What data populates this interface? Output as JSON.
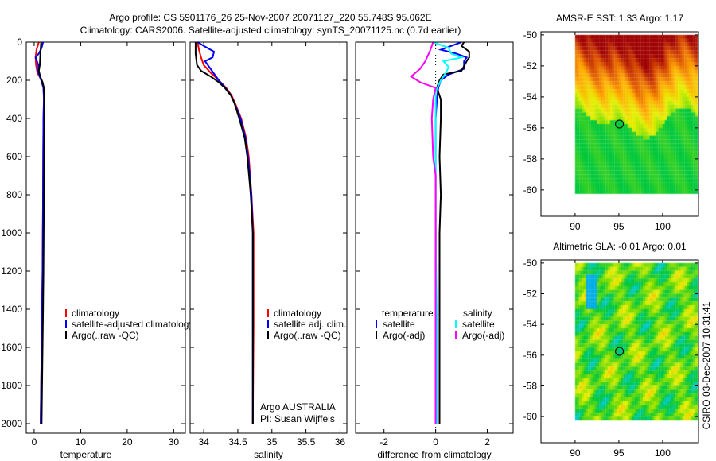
{
  "title": {
    "line1": "Argo profile: CS 5901176_26 25-Nov-2007 20071127_220 55.748S 95.062E",
    "line2": "Climatology: CARS2006. Satellite-adjusted climatology: synTS_20071125.nc (0.7d earlier)"
  },
  "side_stamp": "CSIRO 03-Dec-2007 10:31:41",
  "colors": {
    "climatology": "#ff0000",
    "satellite": "#0000ff",
    "argo": "#000000",
    "sal_satellite": "#00ffff",
    "sal_argo": "#ff00ff"
  },
  "chart_data": [
    {
      "type": "line",
      "name": "temperature",
      "xlabel": "temperature",
      "ylabel": "",
      "xlim": [
        -1.7,
        32.5
      ],
      "ylim": [
        2050,
        0
      ],
      "xticks": [
        0,
        10,
        20,
        30
      ],
      "yticks": [
        0,
        200,
        400,
        600,
        800,
        1000,
        1200,
        1400,
        1600,
        1800,
        2000
      ],
      "legend": [
        "climatology",
        "satellite-adjusted climatology",
        "Argo(..raw -QC)"
      ],
      "legend_position": "center-left",
      "series": [
        {
          "name": "climatology",
          "color": "#ff0000",
          "depth": [
            0,
            40,
            80,
            120,
            160,
            200,
            240,
            300,
            400,
            600,
            800,
            1000,
            1200,
            1400,
            1600,
            1800,
            2000
          ],
          "values": [
            1.0,
            0.5,
            0.3,
            0.4,
            0.7,
            1.6,
            2.0,
            2.1,
            2.0,
            1.95,
            1.9,
            1.85,
            1.8,
            1.7,
            1.6,
            1.5,
            1.4
          ]
        },
        {
          "name": "satellite-adjusted climatology",
          "color": "#0000ff",
          "depth": [
            0,
            30,
            60,
            80,
            120,
            160,
            200,
            240,
            300,
            400,
            600,
            800,
            1000,
            1200,
            1400,
            1600,
            1800,
            2000
          ],
          "values": [
            1.9,
            1.6,
            1.0,
            0.3,
            0.9,
            0.9,
            1.5,
            2.0,
            2.1,
            2.0,
            1.95,
            1.9,
            1.85,
            1.8,
            1.7,
            1.6,
            1.5,
            1.4
          ]
        },
        {
          "name": "Argo(..raw -QC)",
          "color": "#000000",
          "depth": [
            0,
            40,
            80,
            120,
            150,
            180,
            210,
            240,
            300,
            400,
            600,
            800,
            1000,
            1200,
            1400,
            1600,
            1800,
            2000
          ],
          "values": [
            1.5,
            1.4,
            1.3,
            1.2,
            1.0,
            1.3,
            1.8,
            2.1,
            2.2,
            2.2,
            2.15,
            2.1,
            2.05,
            2.0,
            1.9,
            1.8,
            1.7,
            1.6
          ]
        }
      ]
    },
    {
      "type": "line",
      "name": "salinity",
      "xlabel": "salinity",
      "xlim": [
        33.8,
        36.1
      ],
      "ylim": [
        2050,
        0
      ],
      "xticks": [
        34,
        34.5,
        35,
        35.5,
        36
      ],
      "xticklabels": [
        "34",
        "34.5",
        "35",
        "35.5",
        "36"
      ],
      "legend": [
        "climatology",
        "satellite adj. clim.",
        "Argo(..raw -QC)"
      ],
      "legend_position": "center-right",
      "annotations": [
        "Argo AUSTRALIA",
        "PI: Susan Wijffels"
      ],
      "series": [
        {
          "name": "climatology",
          "color": "#ff0000",
          "depth": [
            0,
            40,
            80,
            120,
            160,
            200,
            240,
            280,
            320,
            400,
            500,
            600,
            800,
            1000,
            1200,
            1500,
            2000
          ],
          "values": [
            33.91,
            33.93,
            33.96,
            34.0,
            34.1,
            34.22,
            34.33,
            34.41,
            34.46,
            34.55,
            34.62,
            34.66,
            34.7,
            34.73,
            34.73,
            34.73,
            34.72
          ]
        },
        {
          "name": "satellite adj. clim.",
          "color": "#0000ff",
          "depth": [
            0,
            20,
            50,
            80,
            100,
            150,
            200,
            240,
            280,
            320,
            400,
            500,
            600,
            800,
            1000,
            1200,
            1500,
            2000
          ],
          "values": [
            33.91,
            34.0,
            34.15,
            34.13,
            34.02,
            34.12,
            34.22,
            34.32,
            34.4,
            34.45,
            34.54,
            34.61,
            34.65,
            34.7,
            34.72,
            34.72,
            34.72,
            34.72
          ]
        },
        {
          "name": "Argo(..raw -QC)",
          "color": "#000000",
          "depth": [
            0,
            60,
            120,
            150,
            180,
            210,
            240,
            280,
            320,
            400,
            500,
            600,
            800,
            1000,
            1200,
            1500,
            2000
          ],
          "values": [
            33.88,
            33.88,
            33.9,
            33.96,
            34.1,
            34.22,
            34.31,
            34.4,
            34.45,
            34.52,
            34.6,
            34.64,
            34.69,
            34.72,
            34.72,
            34.72,
            34.72
          ]
        }
      ]
    },
    {
      "type": "line",
      "name": "difference",
      "xlabel": "difference from climatology",
      "xlim": [
        -3.1,
        3.0
      ],
      "ylim": [
        2050,
        0
      ],
      "xticks": [
        -2,
        0,
        2
      ],
      "legend_headers": [
        "temperature",
        "salinity"
      ],
      "legend": [
        "satellite",
        "Argo(-adj)",
        "satellite",
        "Argo(-adj)"
      ],
      "legend_position": "center",
      "series": [
        {
          "name": "temperature satellite",
          "color": "#0000ff",
          "depth": [
            0,
            20,
            40,
            60,
            80,
            100,
            140,
            170,
            200,
            240,
            300,
            400,
            600,
            800,
            1000,
            1500,
            2000
          ],
          "values": [
            1.0,
            0.6,
            0.2,
            0.8,
            1.2,
            1.1,
            1.1,
            0.5,
            0.2,
            0.1,
            0.05,
            0.0,
            0.0,
            0.0,
            0.0,
            0.0,
            0.0
          ]
        },
        {
          "name": "temperature Argo(-adj)",
          "color": "#000000",
          "depth": [
            0,
            20,
            50,
            80,
            100,
            150,
            170,
            200,
            240,
            300,
            400,
            600,
            800,
            1000,
            1500,
            2000
          ],
          "values": [
            1.1,
            1.0,
            1.3,
            1.3,
            1.2,
            1.0,
            0.3,
            0.15,
            0.05,
            0.2,
            0.2,
            0.15,
            0.2,
            0.15,
            0.15,
            0.15
          ]
        },
        {
          "name": "salinity satellite",
          "color": "#00ffff",
          "depth": [
            0,
            30,
            60,
            80,
            100,
            130,
            160,
            200,
            260,
            400,
            600,
            800,
            1000,
            1500,
            2000
          ],
          "values": [
            -0.1,
            0.5,
            0.6,
            1.0,
            0.3,
            0.5,
            0.4,
            0.2,
            0.0,
            0.0,
            0.0,
            0.0,
            0.0,
            0.05,
            0.05
          ]
        },
        {
          "name": "salinity Argo(-adj)",
          "color": "#ff00ff",
          "depth": [
            0,
            40,
            100,
            140,
            180,
            210,
            240,
            300,
            400,
            600,
            700,
            800,
            1000,
            1500,
            2000
          ],
          "values": [
            -0.1,
            -0.2,
            -0.4,
            -0.6,
            -0.95,
            -0.6,
            0.0,
            -0.1,
            -0.15,
            -0.1,
            0.0,
            0.0,
            0.0,
            0.0,
            0.0
          ]
        }
      ]
    },
    {
      "type": "heatmap",
      "name": "sst-map",
      "title": "AMSR-E SST: 1.33 Argo: 1.17",
      "xlim": [
        86.1,
        104.1
      ],
      "ylim": [
        -61.7,
        -49.8
      ],
      "xticks": [
        90,
        95,
        100
      ],
      "yticks": [
        -50,
        -52,
        -54,
        -56,
        -58,
        -60
      ],
      "argo_position": {
        "lon": 95.062,
        "lat": -55.748
      }
    },
    {
      "type": "heatmap",
      "name": "sla-map",
      "title": "Altimetric SLA: -0.01 Argo: 0.01",
      "xlim": [
        86.1,
        104.1
      ],
      "ylim": [
        -61.7,
        -49.8
      ],
      "xticks": [
        90,
        95,
        100
      ],
      "yticks": [
        -50,
        -52,
        -54,
        -56,
        -58,
        -60
      ],
      "argo_position": {
        "lon": 95.062,
        "lat": -55.748
      }
    }
  ]
}
